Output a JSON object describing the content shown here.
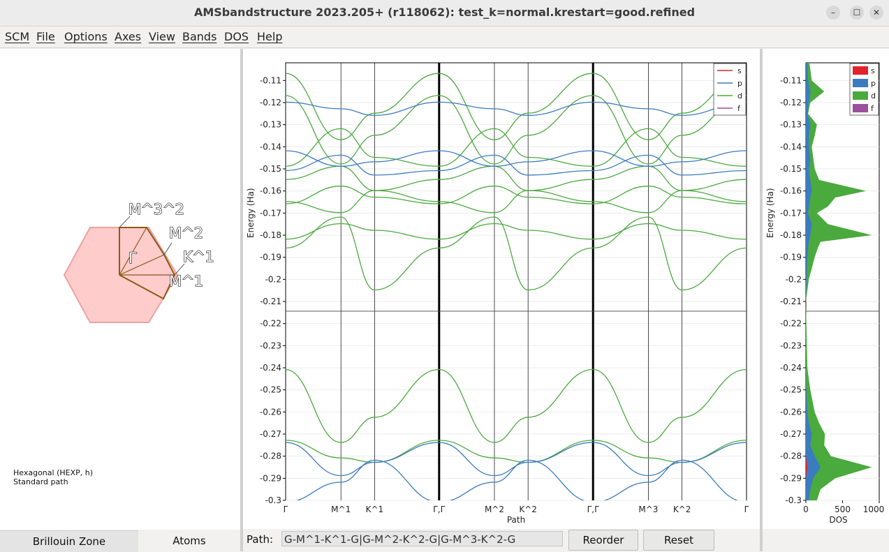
{
  "window": {
    "title": "AMSbandstructure 2023.205+ (r118062): test_k=normal.krestart=good.refined",
    "minimize_icon": "–",
    "maximize_icon": "☐",
    "close_icon": "✕"
  },
  "menu": [
    "SCM",
    "File",
    "Options",
    "Axes",
    "View",
    "Bands",
    "DOS",
    "Help"
  ],
  "brillouin": {
    "points": [
      "M^3^2",
      "M^2",
      "Γ",
      "K^1",
      "M^1"
    ],
    "lattice_line1": "Hexagonal (HEXP, h)",
    "lattice_line2": "Standard path",
    "fill_color": "#ffcccc"
  },
  "tabs": {
    "left": "Brillouin Zone",
    "right": "Atoms"
  },
  "path": {
    "label": "Path:",
    "value": "G-M^1-K^1-G|G-M^2-K^2-G|G-M^3-K^2-G"
  },
  "buttons": {
    "reorder": "Reorder",
    "reset": "Reset"
  },
  "colors": {
    "s": "#e3222a",
    "p": "#3b7bbf",
    "d": "#4aaa3d",
    "f": "#9b4f9c"
  },
  "chart_data": [
    {
      "type": "line",
      "title": "",
      "xlabel": "Path",
      "ylabel": "Energy (Ha)",
      "ylim": [
        -0.3,
        -0.102
      ],
      "yticks": [
        -0.11,
        -0.12,
        -0.13,
        -0.14,
        -0.15,
        -0.16,
        -0.17,
        -0.18,
        -0.19,
        -0.2,
        -0.21,
        -0.22,
        -0.23,
        -0.24,
        -0.25,
        -0.26,
        -0.27,
        -0.28,
        -0.29,
        -0.3
      ],
      "xticks": [
        "Γ",
        "M^1",
        "K^1",
        "Γ,Γ",
        "M^2",
        "K^2",
        "Γ,Γ",
        "M^3",
        "K^2",
        "Γ"
      ],
      "fermi_level": -0.2144,
      "legend": [
        "s",
        "p",
        "d",
        "f"
      ],
      "legend_position": "top-right",
      "grid": true,
      "series": [
        {
          "name": "d",
          "values": [
            [
              -0.2408,
              -0.2738,
              -0.2624,
              -0.2408,
              -0.2738,
              -0.2624,
              -0.2408,
              -0.2738,
              -0.2624,
              -0.2408
            ],
            [
              -0.1858,
              -0.1718,
              -0.2048,
              -0.1858,
              -0.1718,
              -0.2048,
              -0.1858,
              -0.1718,
              -0.2048,
              -0.1858
            ],
            [
              -0.1818,
              -0.1748,
              -0.1778,
              -0.1818,
              -0.1748,
              -0.1778,
              -0.1818,
              -0.1748,
              -0.1778,
              -0.1818
            ],
            [
              -0.1658,
              -0.1578,
              -0.1628,
              -0.1658,
              -0.1578,
              -0.1628,
              -0.1658,
              -0.1578,
              -0.1628,
              -0.1658
            ],
            [
              -0.1648,
              -0.1698,
              -0.1598,
              -0.1648,
              -0.1698,
              -0.1598,
              -0.1648,
              -0.1698,
              -0.1598,
              -0.1648
            ],
            [
              -0.1548,
              -0.1488,
              -0.1598,
              -0.1548,
              -0.1488,
              -0.1598,
              -0.1548,
              -0.1488,
              -0.1598,
              -0.1548
            ],
            [
              -0.1488,
              -0.1318,
              -0.1448,
              -0.1488,
              -0.1318,
              -0.1448,
              -0.1488,
              -0.1318,
              -0.1448,
              -0.1488
            ],
            [
              -0.1168,
              -0.1478,
              -0.1348,
              -0.1168,
              -0.1478,
              -0.1348,
              -0.1168,
              -0.1478,
              -0.1348,
              -0.1168
            ],
            [
              -0.1068,
              -0.1368,
              -0.1248,
              -0.1068,
              -0.1368,
              -0.1248,
              -0.1068,
              -0.1368,
              -0.1248,
              -0.1068
            ],
            [
              -0.2728,
              -0.2808,
              -0.2828,
              -0.2728,
              -0.2808,
              -0.2828,
              -0.2728,
              -0.2808,
              -0.2828,
              -0.2728
            ]
          ]
        },
        {
          "name": "p",
          "values": [
            [
              -0.1418,
              -0.1488,
              -0.1468,
              -0.1418,
              -0.1488,
              -0.1468,
              -0.1418,
              -0.1488,
              -0.1468,
              -0.1418
            ],
            [
              -0.1508,
              -0.1438,
              -0.1528,
              -0.1508,
              -0.1438,
              -0.1528,
              -0.1508,
              -0.1438,
              -0.1528,
              -0.1508
            ],
            [
              -0.1198,
              -0.1228,
              -0.1258,
              -0.1198,
              -0.1228,
              -0.1258,
              -0.1198,
              -0.1228,
              -0.1258,
              -0.1198
            ],
            [
              -0.2738,
              -0.2888,
              -0.2828,
              -0.2738,
              -0.2888,
              -0.2828,
              -0.2738,
              -0.2888,
              -0.2828,
              -0.2738
            ],
            [
              -0.3008,
              -0.2918,
              -0.2818,
              -0.3008,
              -0.2918,
              -0.2818,
              -0.3008,
              -0.2918,
              -0.2818,
              -0.3008
            ]
          ]
        }
      ]
    },
    {
      "type": "area",
      "title": "",
      "xlabel": "DOS",
      "ylabel": "Energy (Ha)",
      "xlim": [
        0,
        1000
      ],
      "xticks": [
        0,
        500,
        1000
      ],
      "ylim": [
        -0.3,
        -0.102
      ],
      "legend": [
        "s",
        "p",
        "d",
        "f"
      ],
      "legend_position": "top-right",
      "energies": [
        -0.1,
        -0.11,
        -0.115,
        -0.12,
        -0.125,
        -0.13,
        -0.135,
        -0.14,
        -0.145,
        -0.15,
        -0.155,
        -0.16,
        -0.163,
        -0.167,
        -0.17,
        -0.175,
        -0.18,
        -0.183,
        -0.186,
        -0.19,
        -0.2,
        -0.21,
        -0.24,
        -0.25,
        -0.26,
        -0.265,
        -0.27,
        -0.275,
        -0.28,
        -0.285,
        -0.29,
        -0.295,
        -0.3
      ],
      "series": [
        {
          "name": "p",
          "values": [
            20,
            30,
            60,
            40,
            20,
            60,
            40,
            40,
            60,
            40,
            60,
            80,
            60,
            40,
            30,
            80,
            60,
            40,
            30,
            20,
            10,
            0,
            0,
            5,
            20,
            40,
            80,
            60,
            120,
            200,
            100,
            60,
            40
          ]
        },
        {
          "name": "d",
          "values": [
            40,
            80,
            250,
            60,
            30,
            150,
            120,
            80,
            100,
            120,
            180,
            820,
            400,
            300,
            150,
            300,
            900,
            200,
            160,
            120,
            40,
            0,
            20,
            60,
            120,
            180,
            260,
            250,
            340,
            900,
            400,
            200,
            150
          ]
        },
        {
          "name": "s",
          "values": [
            0,
            0,
            0,
            0,
            0,
            0,
            0,
            0,
            0,
            0,
            0,
            0,
            0,
            0,
            0,
            0,
            0,
            0,
            0,
            0,
            0,
            0,
            0,
            0,
            0,
            0,
            0,
            0,
            0,
            20,
            0,
            0,
            0
          ]
        }
      ]
    }
  ]
}
